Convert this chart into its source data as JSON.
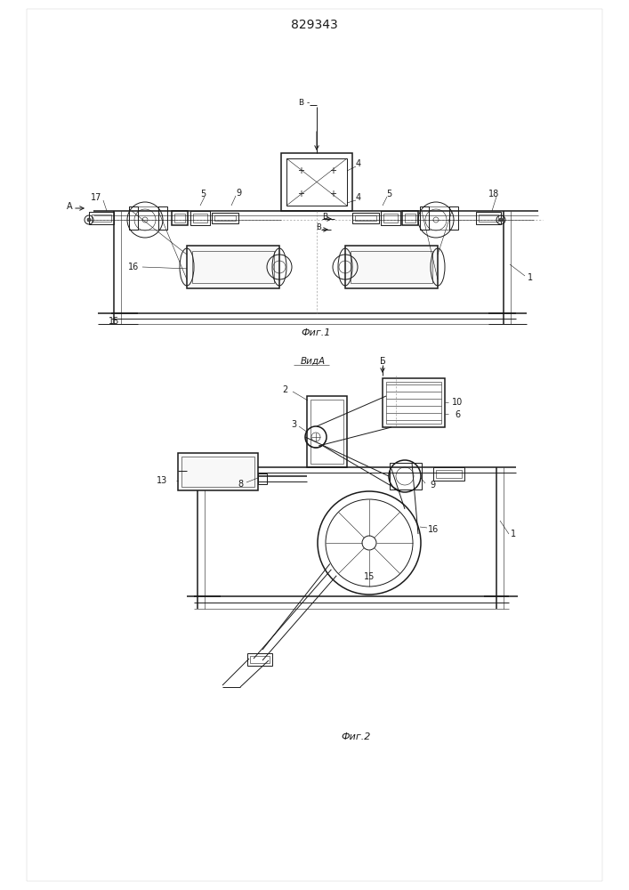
{
  "patent_number": "829343",
  "fig1_caption": "Фиг.1",
  "fig2_caption": "Фиг.2",
  "view_a_label": "ВидА",
  "bg_color": "#ffffff",
  "lc": "#1a1a1a",
  "lw": 0.7,
  "lwt": 0.4,
  "lwk": 1.1
}
